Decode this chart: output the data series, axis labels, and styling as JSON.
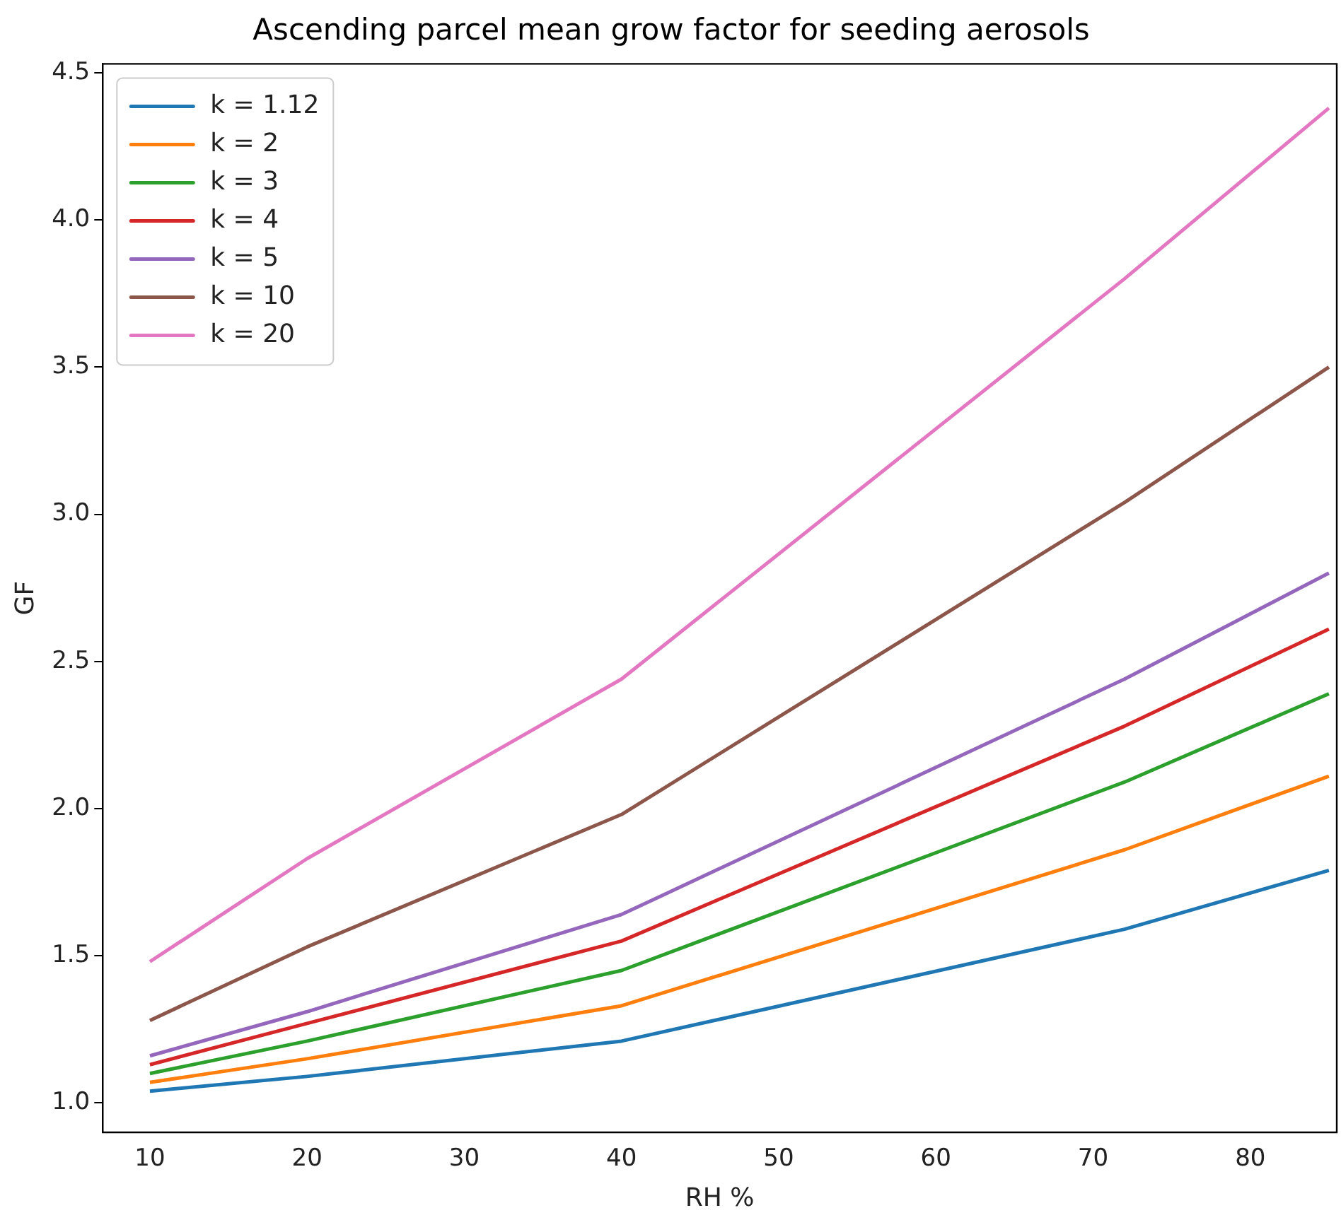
{
  "chart_data": {
    "type": "line",
    "title": "Ascending parcel mean grow factor for seeding aerosols",
    "xlabel": "RH %",
    "ylabel": "GF",
    "x": [
      10,
      20,
      40,
      72,
      85
    ],
    "series": [
      {
        "name": "k = 1.12",
        "color": "#1f77b4",
        "values": [
          1.04,
          1.09,
          1.21,
          1.59,
          1.79
        ]
      },
      {
        "name": "k = 2",
        "color": "#ff7f0e",
        "values": [
          1.07,
          1.15,
          1.33,
          1.86,
          2.11
        ]
      },
      {
        "name": "k = 3",
        "color": "#2ca02c",
        "values": [
          1.1,
          1.21,
          1.45,
          2.09,
          2.39
        ]
      },
      {
        "name": "k = 4",
        "color": "#d62728",
        "values": [
          1.13,
          1.27,
          1.55,
          2.28,
          2.61
        ]
      },
      {
        "name": "k = 5",
        "color": "#9467bd",
        "values": [
          1.16,
          1.31,
          1.64,
          2.44,
          2.8
        ]
      },
      {
        "name": "k = 10",
        "color": "#8c564b",
        "values": [
          1.28,
          1.53,
          1.98,
          3.04,
          3.5
        ]
      },
      {
        "name": "k = 20",
        "color": "#e377c2",
        "values": [
          1.48,
          1.83,
          2.44,
          3.8,
          4.38
        ]
      }
    ],
    "xlim": [
      7,
      85.5
    ],
    "ylim": [
      0.9,
      4.53
    ],
    "xticks": [
      10,
      20,
      30,
      40,
      50,
      60,
      70,
      80
    ],
    "yticks": [
      {
        "value": 1,
        "label": "1.0"
      },
      1.5,
      {
        "value": 2,
        "label": "2.0"
      },
      2.5,
      {
        "value": 3,
        "label": "3.0"
      },
      3.5,
      {
        "value": 4,
        "label": "4.0"
      },
      4.5
    ],
    "grid": false,
    "legend": "top left",
    "marker": "none",
    "line_style": "solid"
  }
}
